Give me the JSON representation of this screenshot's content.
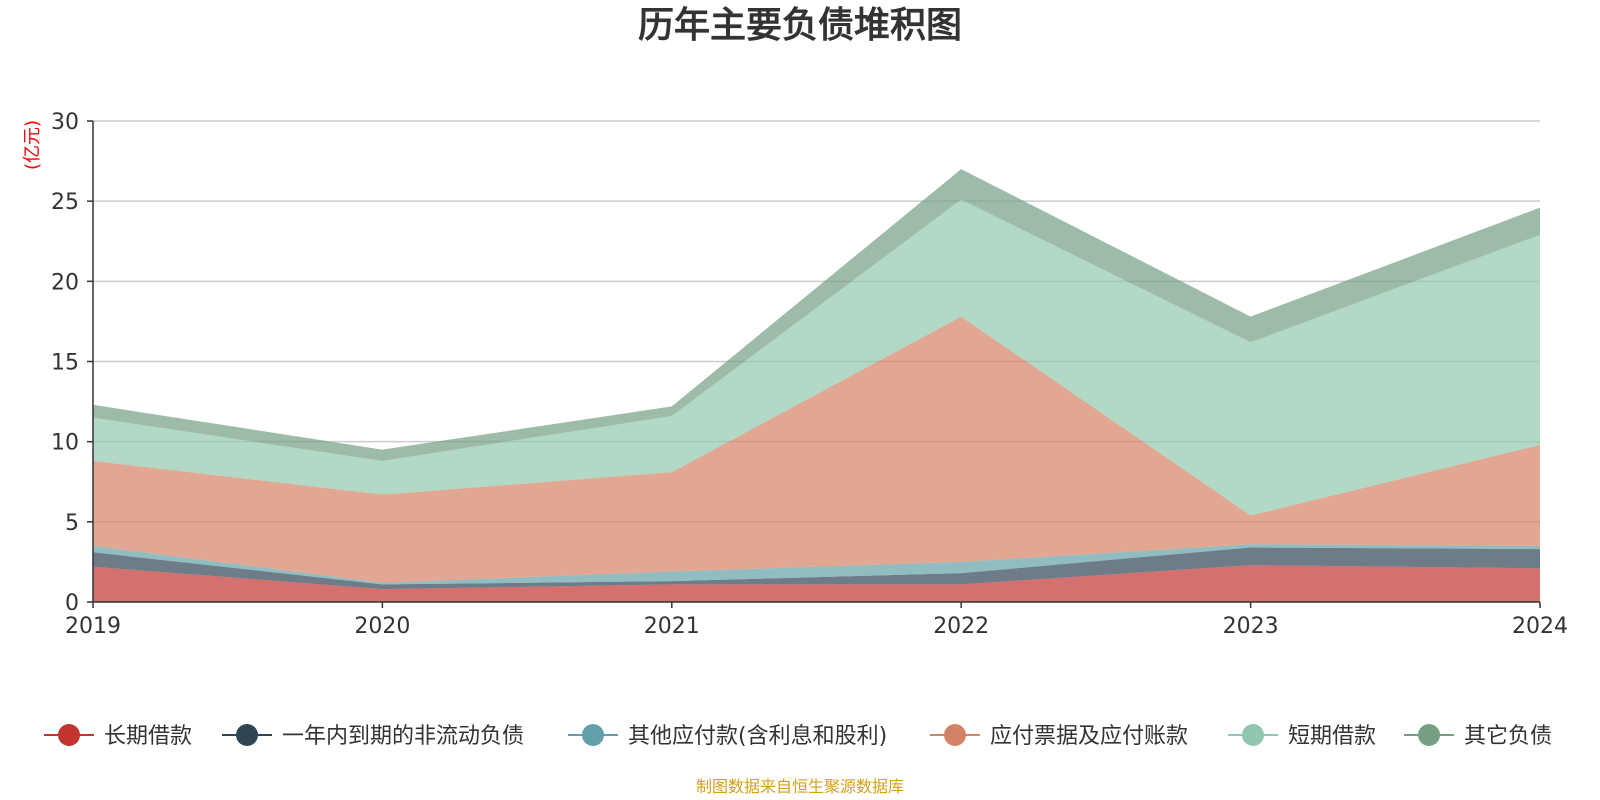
{
  "title": "历年主要负债堆积图",
  "unit_label": "(亿元)",
  "source": "制图数据来自恒生聚源数据库",
  "chart_data": {
    "type": "area",
    "stacked": true,
    "title": "历年主要负债堆积图",
    "ylabel": "(亿元)",
    "x": [
      "2019",
      "2020",
      "2021",
      "2022",
      "2023",
      "2024"
    ],
    "ylim": [
      0,
      30
    ],
    "yticks": [
      0,
      5,
      10,
      15,
      20,
      25,
      30
    ],
    "grid": true,
    "legend_position": "bottom",
    "series": [
      {
        "name": "长期借款",
        "color": "#c23531",
        "values": [
          2.2,
          0.8,
          1.1,
          1.1,
          2.3,
          2.1
        ]
      },
      {
        "name": "一年内到期的非流动负债",
        "color": "#2f4554",
        "values": [
          0.9,
          0.3,
          0.2,
          0.7,
          1.1,
          1.2
        ]
      },
      {
        "name": "其他应付款(含利息和股利)",
        "color": "#61a0a8",
        "values": [
          0.4,
          0.1,
          0.6,
          0.7,
          0.2,
          0.2
        ]
      },
      {
        "name": "应付票据及应付账款",
        "color": "#d48265",
        "values": [
          5.3,
          5.5,
          6.2,
          15.3,
          1.8,
          6.3
        ]
      },
      {
        "name": "短期借款",
        "color": "#91c7ae",
        "values": [
          2.7,
          2.1,
          3.5,
          7.3,
          10.8,
          13.1
        ]
      },
      {
        "name": "其它负债",
        "color": "#749f83",
        "values": [
          0.8,
          0.7,
          0.6,
          1.9,
          1.6,
          1.7
        ]
      }
    ]
  }
}
